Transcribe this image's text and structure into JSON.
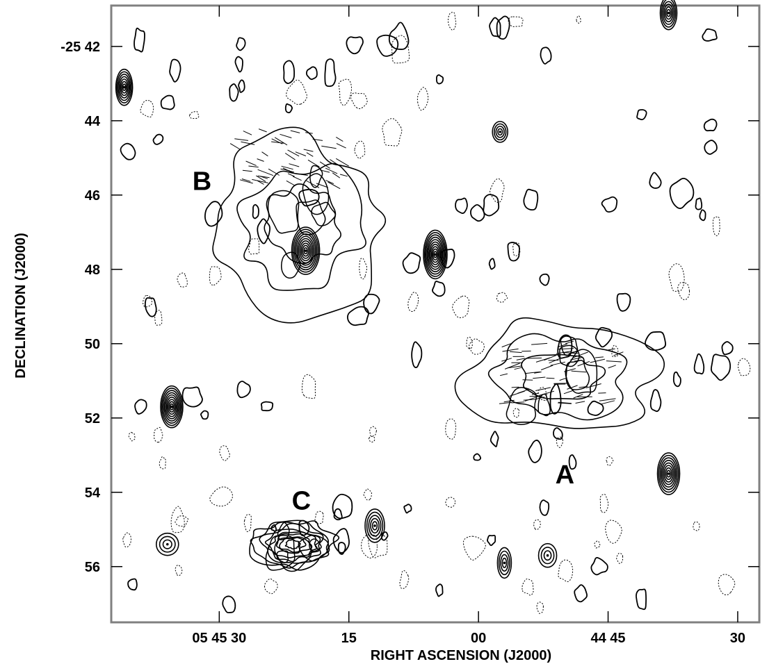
{
  "chart_data": {
    "type": "contour",
    "xlabel": "RIGHT ASCENSION (J2000)",
    "ylabel": "DECLINATION (J2000)",
    "x_ticks": [
      {
        "ra_s": 30,
        "label": "05 45 30"
      },
      {
        "ra_s": 15,
        "label": "15"
      },
      {
        "ra_s": 0,
        "label": "00"
      },
      {
        "ra_s": -15,
        "label": "44 45"
      },
      {
        "ra_s": -30,
        "label": "30"
      }
    ],
    "y_ticks": [
      {
        "dec_min": 42,
        "label": "-25 42"
      },
      {
        "dec_min": 44,
        "label": "44"
      },
      {
        "dec_min": 46,
        "label": "46"
      },
      {
        "dec_min": 48,
        "label": "48"
      },
      {
        "dec_min": 50,
        "label": "50"
      },
      {
        "dec_min": 52,
        "label": "52"
      },
      {
        "dec_min": 54,
        "label": "54"
      },
      {
        "dec_min": 56,
        "label": "56"
      }
    ],
    "xlim_ra_s": [
      42.5,
      -32.5
    ],
    "ylim_dec_min": [
      40.9,
      57.5
    ],
    "source_labels": [
      {
        "name": "A",
        "ra_s": -10,
        "dec_min": 53.5
      },
      {
        "name": "B",
        "ra_s": 32,
        "dec_min": 45.6
      },
      {
        "name": "C",
        "ra_s": 20.5,
        "dec_min": 54.2
      }
    ],
    "compact_sources": [
      {
        "ra_s": 41,
        "dec_min": 43.1,
        "rx": 12,
        "ry": 26,
        "n": 7
      },
      {
        "ra_s": 35.5,
        "dec_min": 51.7,
        "rx": 16,
        "ry": 30,
        "n": 9
      },
      {
        "ra_s": 20,
        "dec_min": 47.5,
        "rx": 20,
        "ry": 34,
        "n": 10
      },
      {
        "ra_s": 5,
        "dec_min": 47.6,
        "rx": 17,
        "ry": 35,
        "n": 10
      },
      {
        "ra_s": -2.5,
        "dec_min": 44.3,
        "rx": 11,
        "ry": 15,
        "n": 4
      },
      {
        "ra_s": -22,
        "dec_min": 53.5,
        "rx": 16,
        "ry": 30,
        "n": 8
      },
      {
        "ra_s": -22,
        "dec_min": 41.1,
        "rx": 12,
        "ry": 24,
        "n": 6
      },
      {
        "ra_s": 12,
        "dec_min": 54.9,
        "rx": 14,
        "ry": 24,
        "n": 5
      },
      {
        "ra_s": -3,
        "dec_min": 55.9,
        "rx": 10,
        "ry": 22,
        "n": 4
      },
      {
        "ra_s": 36,
        "dec_min": 55.4,
        "rx": 16,
        "ry": 16,
        "n": 3
      },
      {
        "ra_s": -8,
        "dec_min": 55.7,
        "rx": 13,
        "ry": 17,
        "n": 3
      }
    ],
    "extended_sources": [
      {
        "name": "A",
        "ra_s": -9.5,
        "dec_min": 50.9,
        "rx": 130,
        "ry": 80,
        "n": 3
      },
      {
        "name": "B",
        "ra_s": 20.5,
        "dec_min": 46.8,
        "rx": 120,
        "ry": 120,
        "n": 3
      },
      {
        "name": "C",
        "ra_s": 21.5,
        "dec_min": 55.4,
        "rx": 60,
        "ry": 34,
        "n": 8
      }
    ],
    "grid": false
  }
}
